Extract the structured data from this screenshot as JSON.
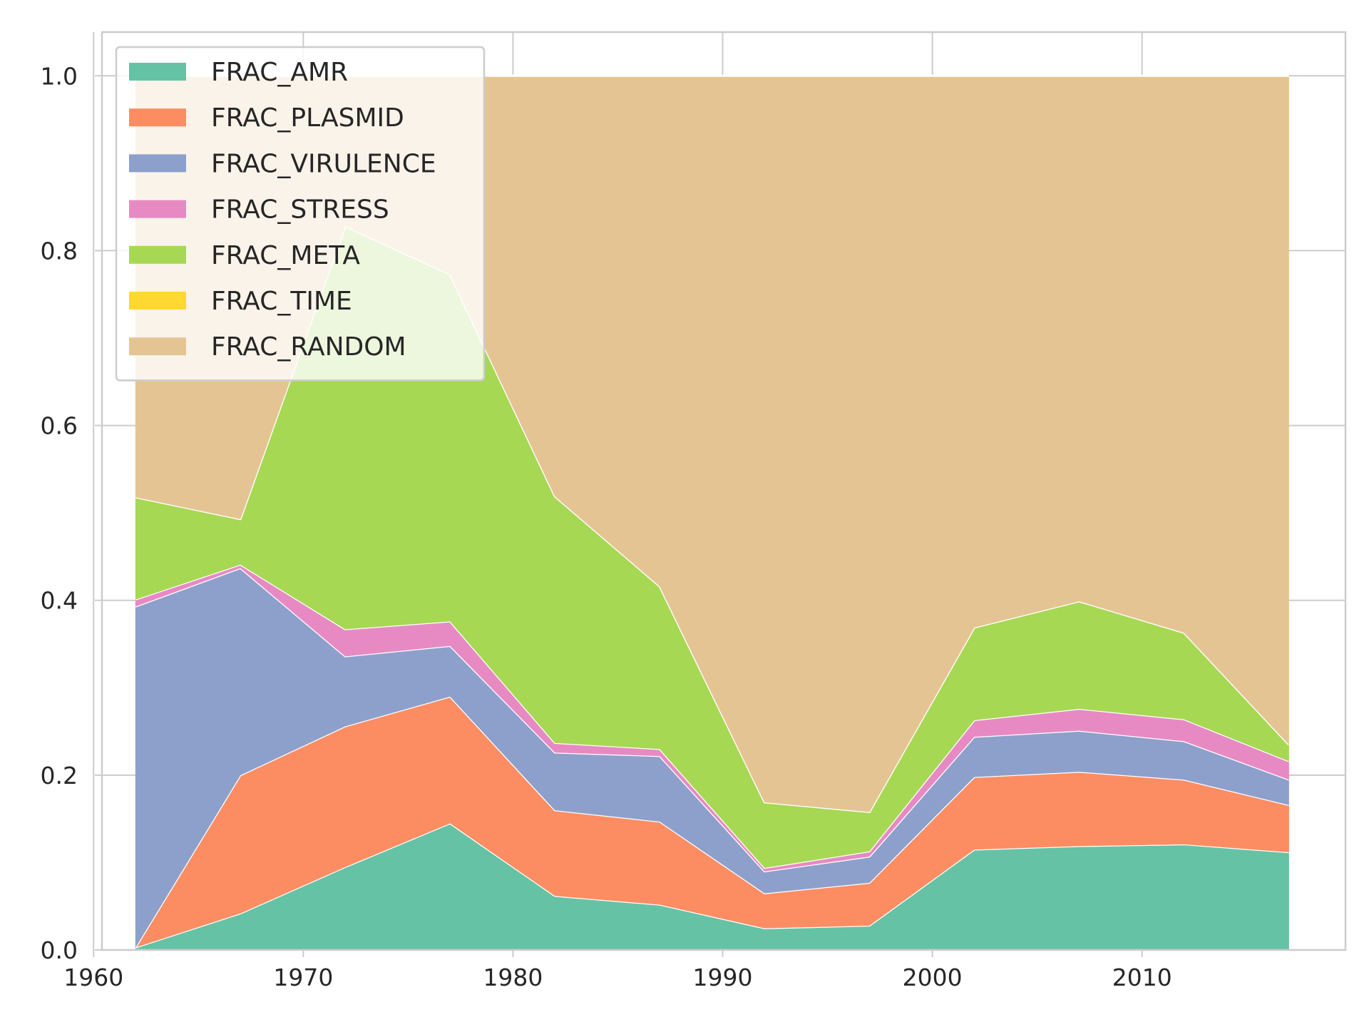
{
  "chart_data": {
    "type": "area",
    "stacked": true,
    "x": [
      1962,
      1967,
      1972,
      1977,
      1982,
      1987,
      1992,
      1997,
      2002,
      2007,
      2012,
      2017
    ],
    "xlim": [
      1960.4,
      2019.7
    ],
    "ylim": [
      0,
      1.05
    ],
    "xticks": [
      1960,
      1970,
      1980,
      1990,
      2000,
      2010
    ],
    "yticks": [
      0.0,
      0.2,
      0.4,
      0.6,
      0.8,
      1.0
    ],
    "xtick_labels": [
      "1960",
      "1970",
      "1980",
      "1990",
      "2000",
      "2010"
    ],
    "ytick_labels": [
      "0.0",
      "0.2",
      "0.4",
      "0.6",
      "0.8",
      "1.0"
    ],
    "grid": true,
    "legend_position": "top-left",
    "series": [
      {
        "name": "FRAC_AMR",
        "color": "#66c2a5",
        "values": [
          0.003,
          0.042,
          0.095,
          0.145,
          0.062,
          0.052,
          0.025,
          0.028,
          0.115,
          0.119,
          0.121,
          0.112
        ]
      },
      {
        "name": "FRAC_PLASMID",
        "color": "#fc8d62",
        "values": [
          0.0,
          0.158,
          0.161,
          0.145,
          0.098,
          0.095,
          0.04,
          0.049,
          0.083,
          0.085,
          0.074,
          0.054
        ]
      },
      {
        "name": "FRAC_VIRULENCE",
        "color": "#8da0cb",
        "values": [
          0.39,
          0.237,
          0.08,
          0.058,
          0.066,
          0.075,
          0.025,
          0.03,
          0.046,
          0.047,
          0.044,
          0.029
        ]
      },
      {
        "name": "FRAC_STRESS",
        "color": "#e78ac3",
        "values": [
          0.008,
          0.004,
          0.031,
          0.028,
          0.011,
          0.008,
          0.004,
          0.006,
          0.019,
          0.025,
          0.025,
          0.021
        ]
      },
      {
        "name": "FRAC_META",
        "color": "#a6d854",
        "values": [
          0.117,
          0.052,
          0.461,
          0.397,
          0.282,
          0.186,
          0.075,
          0.045,
          0.106,
          0.123,
          0.099,
          0.019
        ]
      },
      {
        "name": "FRAC_TIME",
        "color": "#ffd92f",
        "values": [
          0,
          0,
          0,
          0,
          0,
          0,
          0,
          0,
          0,
          0,
          0,
          0
        ]
      },
      {
        "name": "FRAC_RANDOM",
        "color": "#e5c494",
        "values": [
          0.482,
          0.507,
          0.172,
          0.227,
          0.481,
          0.584,
          0.831,
          0.842,
          0.631,
          0.601,
          0.637,
          0.765
        ]
      }
    ]
  }
}
